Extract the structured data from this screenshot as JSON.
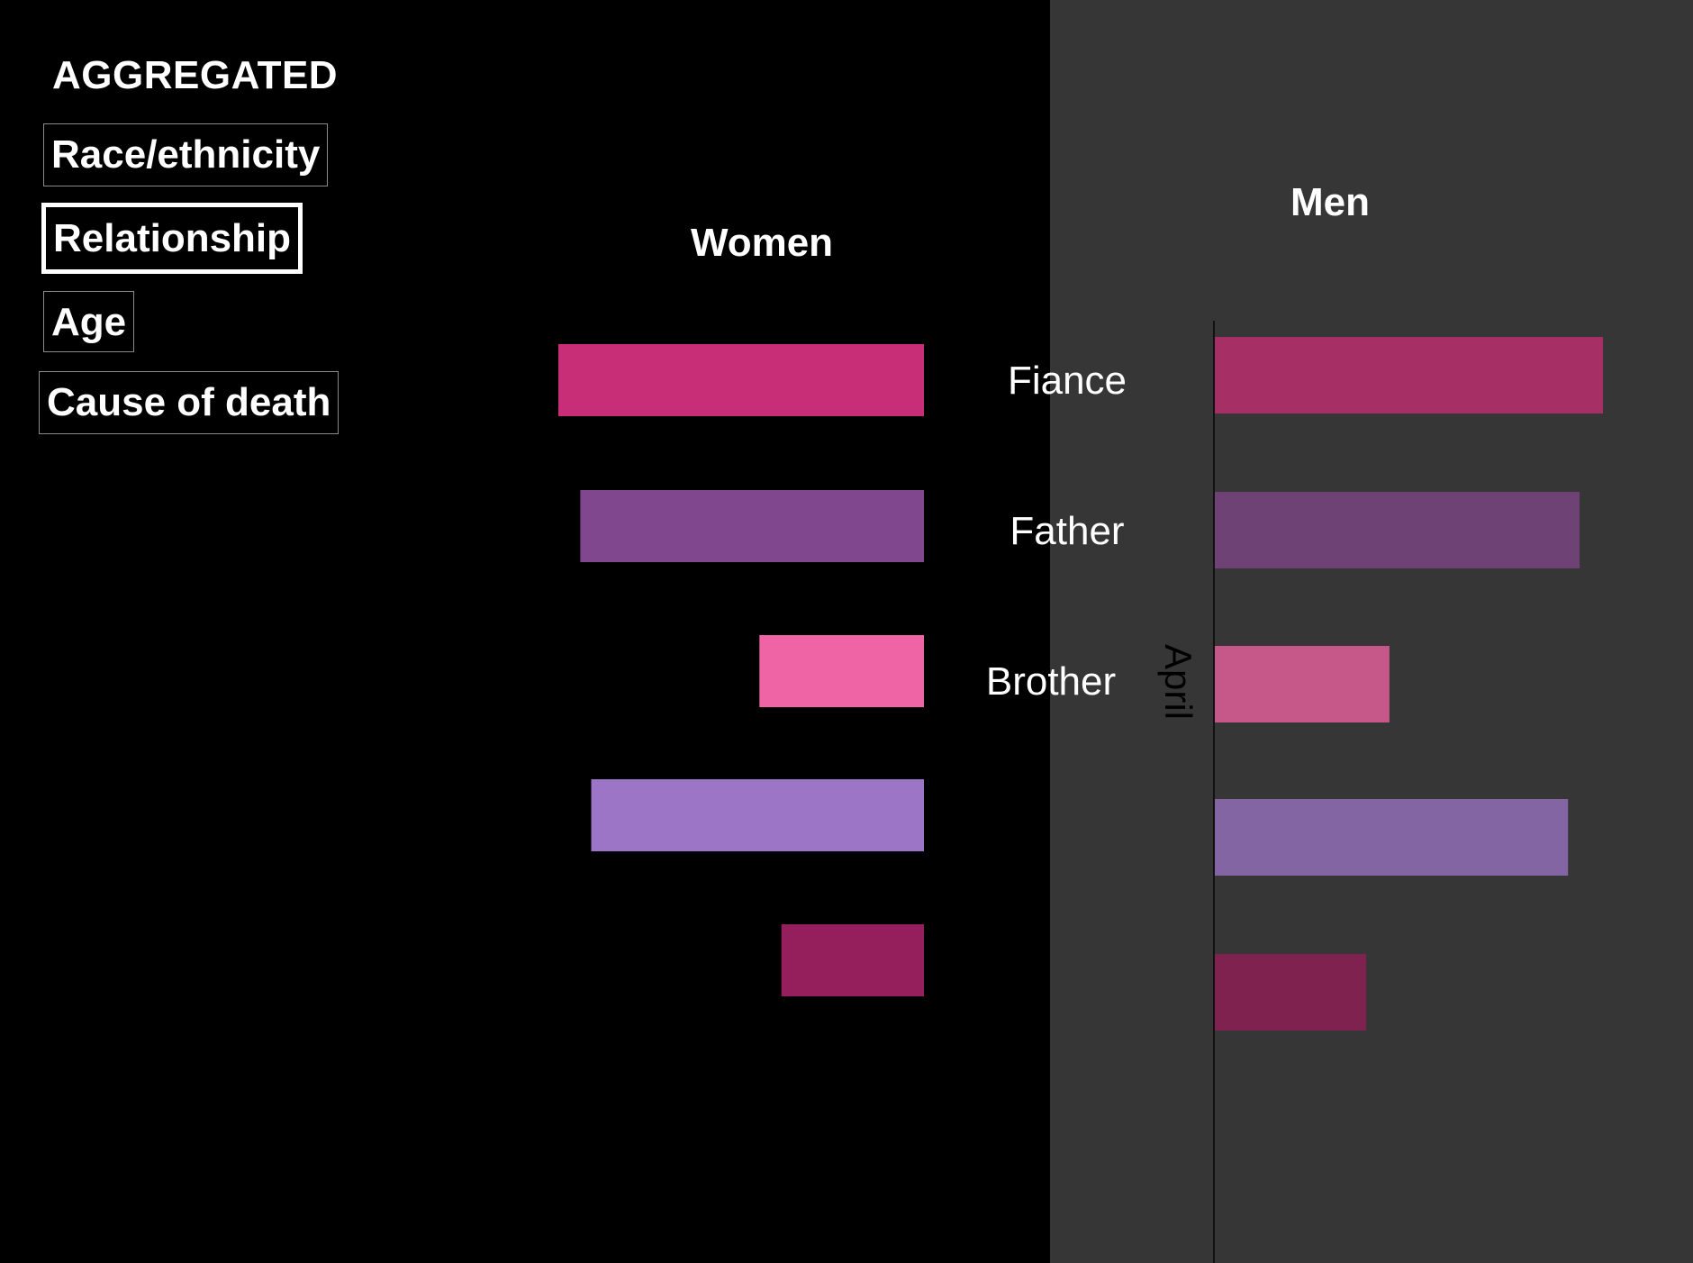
{
  "sidebar": {
    "title": "AGGREGATED",
    "filters": [
      {
        "label": "Race/ethnicity",
        "active": false
      },
      {
        "label": "Relationship",
        "active": true
      },
      {
        "label": "Age",
        "active": false
      },
      {
        "label": "Cause of death",
        "active": false
      }
    ]
  },
  "chart_data": {
    "type": "bar",
    "orientation": "horizontal",
    "layout": "butterfly",
    "grid": false,
    "categories": [
      "Fiance",
      "Father",
      "Brother",
      "",
      ""
    ],
    "series": [
      {
        "name": "Women",
        "direction": "left",
        "values": [
          100,
          94,
          45,
          91,
          39
        ],
        "colors": [
          "#c72e77",
          "#80468e",
          "#ee64a5",
          "#9c75c7",
          "#951e5d"
        ]
      },
      {
        "name": "Men",
        "direction": "right",
        "values": [
          100,
          94,
          45,
          91,
          39
        ],
        "colors": [
          "#a62f66",
          "#6e4274",
          "#c65789",
          "#8465a4",
          "#80224f"
        ]
      }
    ],
    "annotation": "April",
    "xlim": [
      0,
      100
    ],
    "panel_colors": {
      "women": "#000000",
      "men": "#363636"
    }
  }
}
